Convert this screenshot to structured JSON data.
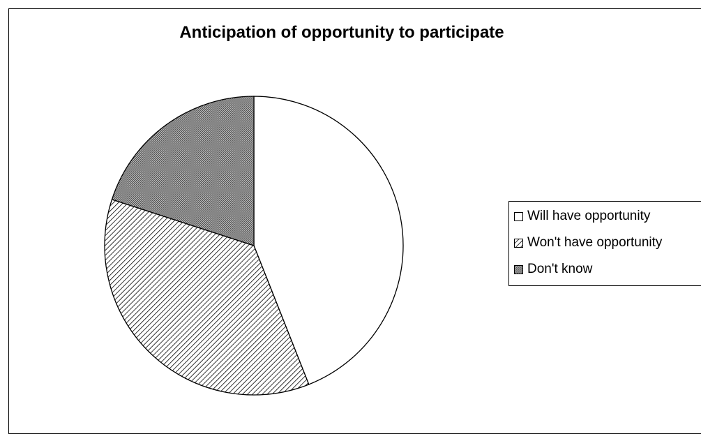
{
  "chart_data": {
    "type": "pie",
    "title": "Anticipation of opportunity to participate",
    "categories": [
      "Will have opportunity",
      "Won't have opportunity",
      "Don't know"
    ],
    "values": [
      44,
      36,
      20
    ],
    "start_angle_deg": 0,
    "direction": "clockwise",
    "legend_position": "right",
    "patterns": [
      "solid-white",
      "diagonal-hatch",
      "dense-crosshatch"
    ],
    "colors": [
      "#ffffff",
      "#000000",
      "#888888"
    ]
  }
}
